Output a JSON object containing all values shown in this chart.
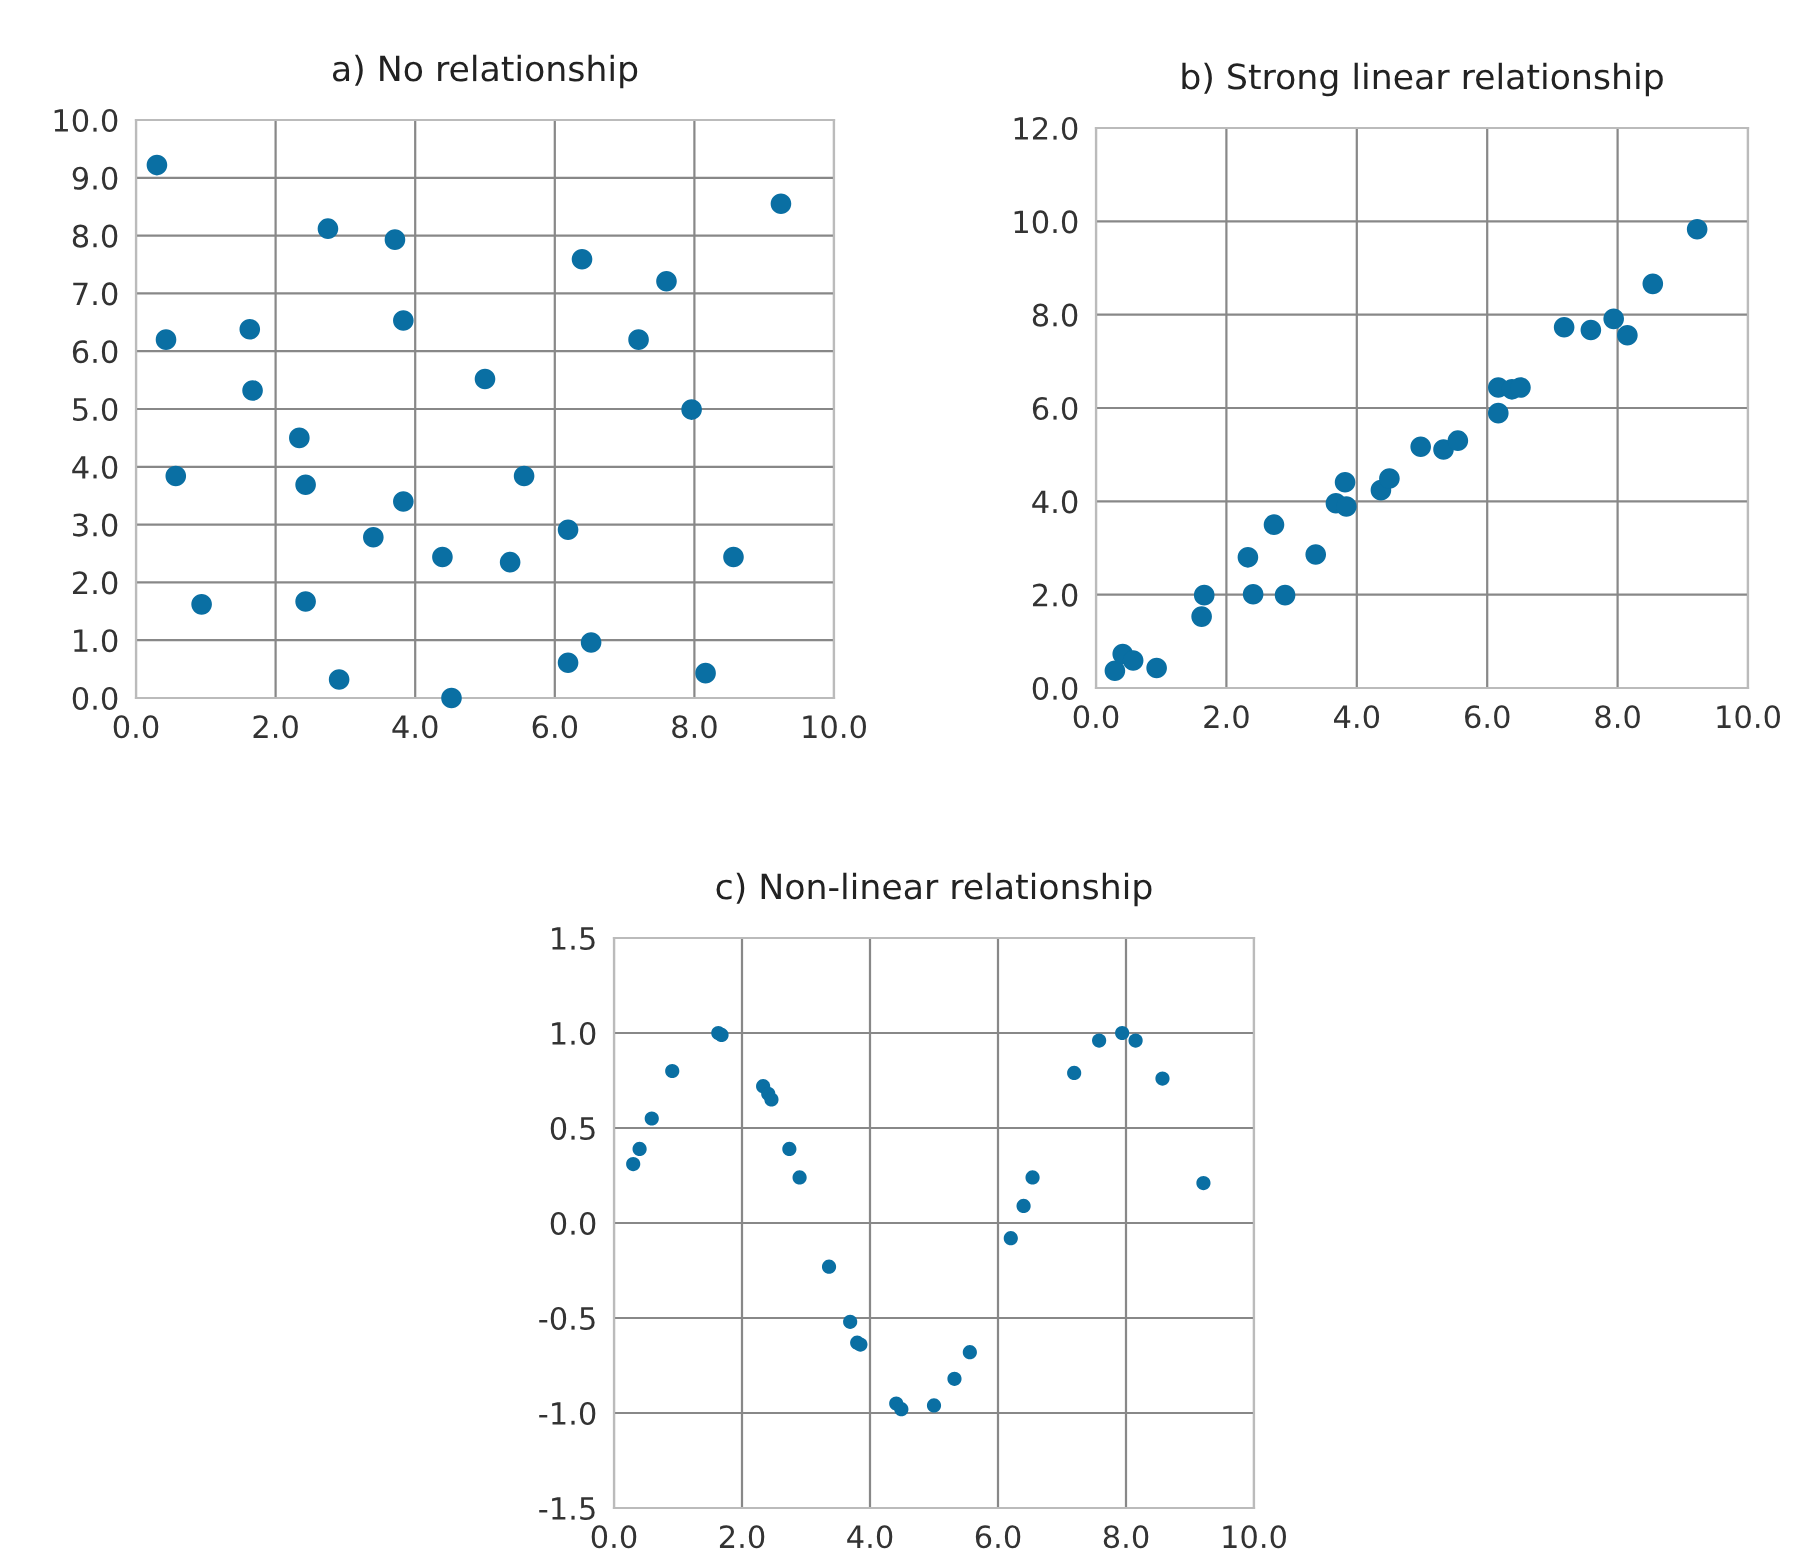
{
  "chart_data": [
    {
      "type": "scatter",
      "title": "a) No relationship",
      "color": "#0a6fa3",
      "marker": "circle",
      "grid": true,
      "x": [
        0.3,
        0.43,
        0.57,
        0.94,
        1.63,
        1.67,
        2.34,
        2.43,
        2.43,
        2.75,
        2.91,
        3.4,
        3.71,
        3.83,
        3.83,
        4.39,
        4.52,
        5.0,
        5.36,
        5.56,
        6.19,
        6.19,
        6.39,
        6.52,
        7.2,
        7.6,
        7.96,
        8.16,
        8.56,
        9.24
      ],
      "values": [
        9.22,
        6.2,
        3.84,
        1.62,
        6.38,
        5.32,
        4.5,
        3.69,
        1.67,
        8.12,
        0.32,
        2.78,
        7.93,
        6.53,
        3.4,
        2.44,
        0.0,
        5.52,
        2.35,
        3.84,
        2.91,
        0.61,
        7.59,
        0.96,
        6.2,
        7.21,
        4.99,
        0.43,
        2.44,
        8.55
      ],
      "xlim": [
        0,
        10
      ],
      "ylim": [
        0,
        10
      ],
      "xticks": [
        {
          "value": 0,
          "label": "0.0"
        },
        {
          "value": 2,
          "label": "2.0"
        },
        {
          "value": 4,
          "label": "4.0"
        },
        {
          "value": 6,
          "label": "6.0"
        },
        {
          "value": 8,
          "label": "8.0"
        },
        {
          "value": 10,
          "label": "10.0"
        }
      ],
      "yticks": [
        {
          "value": 0,
          "label": "0.0"
        },
        {
          "value": 1,
          "label": "1.0"
        },
        {
          "value": 2,
          "label": "2.0"
        },
        {
          "value": 3,
          "label": "3.0"
        },
        {
          "value": 4,
          "label": "4.0"
        },
        {
          "value": 5,
          "label": "5.0"
        },
        {
          "value": 6,
          "label": "6.0"
        },
        {
          "value": 7,
          "label": "7.0"
        },
        {
          "value": 8,
          "label": "8.0"
        },
        {
          "value": 9,
          "label": "9.0"
        },
        {
          "value": 10,
          "label": "10.0"
        }
      ]
    },
    {
      "type": "scatter",
      "title": "b) Strong linear relationship",
      "color": "#0a6fa3",
      "marker": "circle",
      "grid": true,
      "x": [
        0.29,
        0.41,
        0.57,
        0.93,
        1.62,
        1.66,
        2.33,
        2.41,
        2.73,
        2.9,
        3.37,
        3.68,
        3.82,
        3.84,
        4.37,
        4.5,
        4.98,
        5.33,
        5.55,
        6.17,
        6.17,
        6.38,
        6.51,
        7.18,
        7.59,
        7.94,
        8.15,
        8.54,
        9.22
      ],
      "values": [
        0.37,
        0.73,
        0.59,
        0.43,
        1.53,
        1.99,
        2.8,
        2.01,
        3.5,
        1.99,
        2.86,
        3.96,
        4.41,
        3.89,
        4.24,
        4.49,
        5.17,
        5.11,
        5.3,
        5.89,
        6.44,
        6.4,
        6.44,
        7.73,
        7.67,
        7.91,
        7.56,
        8.66,
        9.83
      ],
      "xlim": [
        0,
        10
      ],
      "ylim": [
        0,
        12
      ],
      "xticks": [
        {
          "value": 0,
          "label": "0.0"
        },
        {
          "value": 2,
          "label": "2.0"
        },
        {
          "value": 4,
          "label": "4.0"
        },
        {
          "value": 6,
          "label": "6.0"
        },
        {
          "value": 8,
          "label": "8.0"
        },
        {
          "value": 10,
          "label": "10.0"
        }
      ],
      "yticks": [
        {
          "value": 0,
          "label": "0.0"
        },
        {
          "value": 2,
          "label": "2.0"
        },
        {
          "value": 4,
          "label": "4.0"
        },
        {
          "value": 6,
          "label": "6.0"
        },
        {
          "value": 8,
          "label": "8.0"
        },
        {
          "value": 10,
          "label": "10.0"
        },
        {
          "value": 12,
          "label": "12.0"
        }
      ]
    },
    {
      "type": "scatter",
      "title": "c) Non-linear relationship",
      "color": "#0a6fa3",
      "marker": "circle",
      "grid": true,
      "x": [
        0.3,
        0.4,
        0.59,
        0.91,
        1.63,
        1.68,
        2.33,
        2.41,
        2.46,
        2.74,
        2.9,
        3.36,
        3.69,
        3.8,
        3.85,
        4.41,
        4.49,
        5.0,
        5.32,
        5.56,
        6.2,
        6.4,
        6.54,
        7.19,
        7.58,
        7.94,
        8.15,
        8.57,
        9.21
      ],
      "values": [
        0.31,
        0.39,
        0.55,
        0.8,
        1.0,
        0.99,
        0.72,
        0.68,
        0.65,
        0.39,
        0.24,
        -0.23,
        -0.52,
        -0.63,
        -0.64,
        -0.95,
        -0.98,
        -0.96,
        -0.82,
        -0.68,
        -0.08,
        0.09,
        0.24,
        0.79,
        0.96,
        1.0,
        0.96,
        0.76,
        0.21
      ],
      "xlim": [
        0,
        10
      ],
      "ylim": [
        -1.5,
        1.5
      ],
      "xticks": [
        {
          "value": 0,
          "label": "0.0"
        },
        {
          "value": 2,
          "label": "2.0"
        },
        {
          "value": 4,
          "label": "4.0"
        },
        {
          "value": 6,
          "label": "6.0"
        },
        {
          "value": 8,
          "label": "8.0"
        },
        {
          "value": 10,
          "label": "10.0"
        }
      ],
      "yticks": [
        {
          "value": -1.5,
          "label": "-1.5"
        },
        {
          "value": -1,
          "label": "-1.0"
        },
        {
          "value": -0.5,
          "label": "-0.5"
        },
        {
          "value": 0,
          "label": "0.0"
        },
        {
          "value": 0.5,
          "label": "0.5"
        },
        {
          "value": 1,
          "label": "1.0"
        },
        {
          "value": 1.5,
          "label": "1.5"
        }
      ]
    }
  ]
}
